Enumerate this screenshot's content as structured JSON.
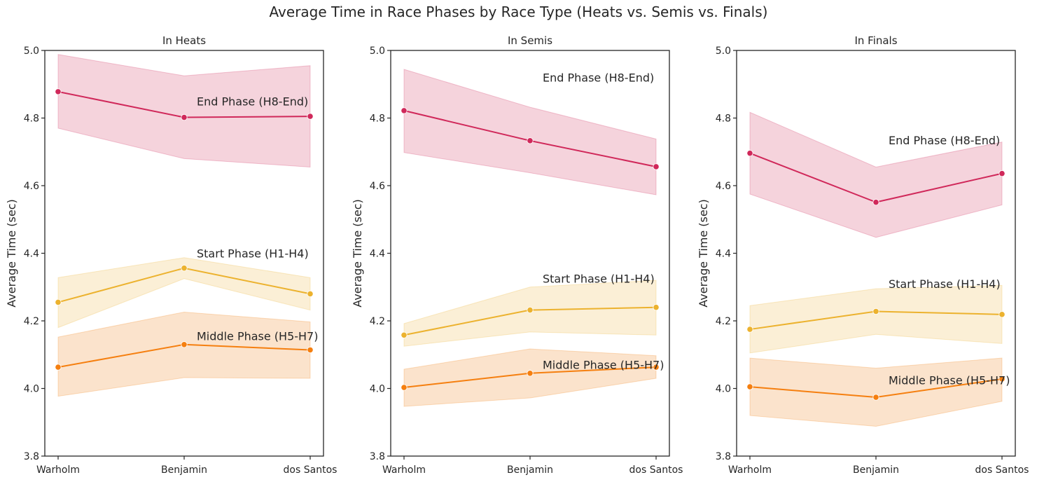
{
  "suptitle": "Average Time in Race Phases by Race Type (Heats vs. Semis vs. Finals)",
  "chart_data": [
    {
      "type": "line",
      "title": "In Heats",
      "xlabel": "",
      "ylabel": "Average Time (sec)",
      "categories": [
        "Warholm",
        "Benjamin",
        "dos Santos"
      ],
      "ylim": [
        3.8,
        5.0
      ],
      "yticks": [
        "3.8",
        "4.0",
        "4.2",
        "4.4",
        "4.6",
        "4.8",
        "5.0"
      ],
      "grid": false,
      "series": [
        {
          "name": "End Phase (H8-End)",
          "color": "#d0285a",
          "fill": "#f5d3dc",
          "values": [
            4.878,
            4.802,
            4.805
          ],
          "lower": [
            4.77,
            4.68,
            4.655
          ],
          "upper": [
            4.988,
            4.925,
            4.955
          ]
        },
        {
          "name": "Start Phase (H1-H4)",
          "color": "#ecb22e",
          "fill": "#fbefd6",
          "values": [
            4.255,
            4.356,
            4.28
          ],
          "lower": [
            4.18,
            4.325,
            4.232
          ],
          "upper": [
            4.328,
            4.387,
            4.328
          ]
        },
        {
          "name": "Middle Phase (H5-H7)",
          "color": "#f57f0f",
          "fill": "#fbe3cc",
          "values": [
            4.063,
            4.13,
            4.114
          ],
          "lower": [
            3.977,
            4.032,
            4.03
          ],
          "upper": [
            4.152,
            4.226,
            4.197
          ]
        }
      ],
      "annotations": [
        {
          "text": "End Phase (H8-End)",
          "x": 0.55,
          "y": 4.85
        },
        {
          "text": "Start Phase (H1-H4)",
          "x": 0.55,
          "y": 4.4
        },
        {
          "text": "Middle Phase (H5-H7)",
          "x": 0.55,
          "y": 4.155
        }
      ]
    },
    {
      "type": "line",
      "title": "In Semis",
      "xlabel": "",
      "ylabel": "Average Time (sec)",
      "categories": [
        "Warholm",
        "Benjamin",
        "dos Santos"
      ],
      "ylim": [
        3.8,
        5.0
      ],
      "yticks": [
        "3.8",
        "4.0",
        "4.2",
        "4.4",
        "4.6",
        "4.8",
        "5.0"
      ],
      "grid": false,
      "series": [
        {
          "name": "End Phase (H8-End)",
          "color": "#d0285a",
          "fill": "#f5d3dc",
          "values": [
            4.822,
            4.733,
            4.656
          ],
          "lower": [
            4.698,
            4.638,
            4.573
          ],
          "upper": [
            4.944,
            4.832,
            4.738
          ]
        },
        {
          "name": "Start Phase (H1-H4)",
          "color": "#ecb22e",
          "fill": "#fbefd6",
          "values": [
            4.158,
            4.232,
            4.24
          ],
          "lower": [
            4.125,
            4.167,
            4.158
          ],
          "upper": [
            4.192,
            4.3,
            4.32
          ]
        },
        {
          "name": "Middle Phase (H5-H7)",
          "color": "#f57f0f",
          "fill": "#fbe3cc",
          "values": [
            4.003,
            4.045,
            4.063
          ],
          "lower": [
            3.947,
            3.972,
            4.03
          ],
          "upper": [
            4.057,
            4.117,
            4.097
          ]
        }
      ],
      "annotations": [
        {
          "text": "End Phase (H8-End)",
          "x": 0.55,
          "y": 4.92
        },
        {
          "text": "Start Phase (H1-H4)",
          "x": 0.55,
          "y": 4.325
        },
        {
          "text": "Middle Phase (H5-H7)",
          "x": 0.55,
          "y": 4.07
        }
      ]
    },
    {
      "type": "line",
      "title": "In Finals",
      "xlabel": "",
      "ylabel": "Average Time (sec)",
      "categories": [
        "Warholm",
        "Benjamin",
        "dos Santos"
      ],
      "ylim": [
        3.8,
        5.0
      ],
      "yticks": [
        "3.8",
        "4.0",
        "4.2",
        "4.4",
        "4.6",
        "4.8",
        "5.0"
      ],
      "grid": false,
      "series": [
        {
          "name": "End Phase (H8-End)",
          "color": "#d0285a",
          "fill": "#f5d3dc",
          "values": [
            4.696,
            4.551,
            4.636
          ],
          "lower": [
            4.575,
            4.447,
            4.543
          ],
          "upper": [
            4.817,
            4.655,
            4.729
          ]
        },
        {
          "name": "Start Phase (H1-H4)",
          "color": "#ecb22e",
          "fill": "#fbefd6",
          "values": [
            4.175,
            4.228,
            4.219
          ],
          "lower": [
            4.105,
            4.16,
            4.133
          ],
          "upper": [
            4.245,
            4.295,
            4.305
          ]
        },
        {
          "name": "Middle Phase (H5-H7)",
          "color": "#f57f0f",
          "fill": "#fbe3cc",
          "values": [
            4.005,
            3.974,
            4.028
          ],
          "lower": [
            3.92,
            3.888,
            3.962
          ],
          "upper": [
            4.09,
            4.06,
            4.09
          ]
        }
      ],
      "annotations": [
        {
          "text": "End Phase (H8-End)",
          "x": 0.55,
          "y": 4.735
        },
        {
          "text": "Start Phase (H1-H4)",
          "x": 0.55,
          "y": 4.31
        },
        {
          "text": "Middle Phase (H5-H7)",
          "x": 0.55,
          "y": 4.025
        }
      ]
    }
  ]
}
